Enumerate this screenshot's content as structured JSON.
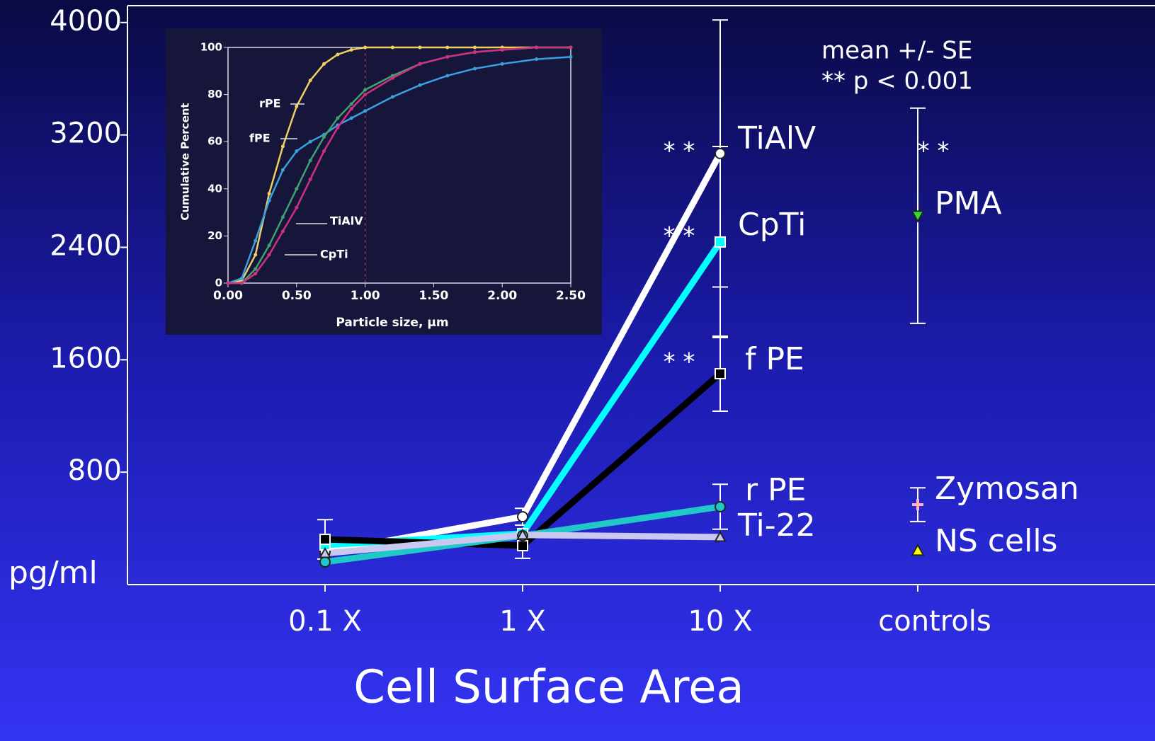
{
  "chart_data": [
    {
      "type": "line",
      "x_label": "Cell Surface  Area",
      "y_label": "pg/ml",
      "categories": [
        "0.1 X",
        "1 X",
        "10 X",
        "controls"
      ],
      "ylim": [
        0,
        4120
      ],
      "yticks": [
        800,
        1600,
        2400,
        3200,
        4000
      ],
      "annotations": [
        "mean +/- SE",
        "** p < 0.001"
      ],
      "significance_label": "* *",
      "series": [
        {
          "name": "TiAlV",
          "color": "#ffffff",
          "marker": "circle",
          "values": [
            232,
            483,
            3068,
            null
          ],
          "errors": [
            null,
            60,
            950,
            null
          ],
          "significant": [
            false,
            false,
            true,
            false
          ]
        },
        {
          "name": "CpTi",
          "color": "#00ffff",
          "marker": "square",
          "values": [
            282,
            363,
            2438,
            null
          ],
          "errors": [
            null,
            null,
            680,
            null
          ],
          "significant": [
            false,
            false,
            true,
            false
          ]
        },
        {
          "name": "f PE",
          "color": "#000000",
          "marker": "square",
          "values": [
            322,
            277,
            1501,
            null
          ],
          "errors": [
            140,
            90,
            267,
            null
          ],
          "significant": [
            false,
            false,
            true,
            false
          ]
        },
        {
          "name": "r PE",
          "color": "#20c8c8",
          "marker": "circle",
          "values": [
            161,
            348,
            554,
            null
          ],
          "errors": [
            null,
            null,
            160,
            null
          ],
          "significant": [
            false,
            false,
            false,
            false
          ]
        },
        {
          "name": "Ti-22",
          "color": "#c8c8f0",
          "marker": "triangle",
          "values": [
            222,
            353,
            338,
            null
          ],
          "errors": [
            null,
            null,
            null,
            null
          ],
          "significant": [
            false,
            false,
            false,
            false
          ]
        }
      ],
      "controls": [
        {
          "name": "PMA",
          "color": "#30e030",
          "marker": "triangle-down",
          "value": 2625,
          "error": 766,
          "significant": true
        },
        {
          "name": "Zymosan",
          "color": "#ffb0d0",
          "marker": "plus",
          "value": 569,
          "error": 120,
          "significant": false
        },
        {
          "name": "NS cells",
          "color": "#ffff00",
          "marker": "triangle",
          "value": 242,
          "error": null,
          "significant": false
        }
      ]
    },
    {
      "type": "line",
      "x_label": "Particle size,  µm",
      "y_label": "Cumulative Percent",
      "x": [
        0,
        0.1,
        0.2,
        0.3,
        0.4,
        0.5,
        0.6,
        0.7,
        0.8,
        0.9,
        1.0,
        1.2,
        1.4,
        1.6,
        1.8,
        2.0,
        2.25,
        2.5
      ],
      "xlim": [
        0,
        2.5
      ],
      "ylim": [
        0,
        100
      ],
      "xticks": [
        {
          "value": 0,
          "label": "0.00"
        },
        {
          "value": 0.5,
          "label": "0.50"
        },
        {
          "value": 1,
          "label": "1.00"
        },
        {
          "value": 1.5,
          "label": "1.50"
        },
        {
          "value": 2,
          "label": "2.00"
        },
        {
          "value": 2.5,
          "label": "2.50"
        }
      ],
      "yticks": [
        0,
        20,
        40,
        60,
        80,
        100
      ],
      "series": [
        {
          "name": "rPE",
          "color": "#f0d060",
          "values": [
            0,
            1,
            12,
            38,
            58,
            75,
            86,
            93,
            97,
            99,
            100,
            100,
            100,
            100,
            100,
            100,
            100,
            100
          ]
        },
        {
          "name": "fPE",
          "color": "#3aa0e0",
          "values": [
            0,
            2,
            18,
            35,
            48,
            56,
            60,
            63,
            67,
            70,
            73,
            79,
            84,
            88,
            91,
            93,
            95,
            96
          ]
        },
        {
          "name": "TiAlV",
          "color": "#40a070",
          "values": [
            0,
            0,
            6,
            16,
            28,
            40,
            52,
            62,
            70,
            76,
            82,
            88,
            93,
            96,
            98,
            99,
            100,
            100
          ]
        },
        {
          "name": "CpTi",
          "color": "#d03080",
          "values": [
            0,
            0,
            4,
            12,
            22,
            32,
            44,
            56,
            66,
            74,
            80,
            87,
            93,
            96,
            98,
            99,
            100,
            100
          ]
        }
      ]
    }
  ]
}
